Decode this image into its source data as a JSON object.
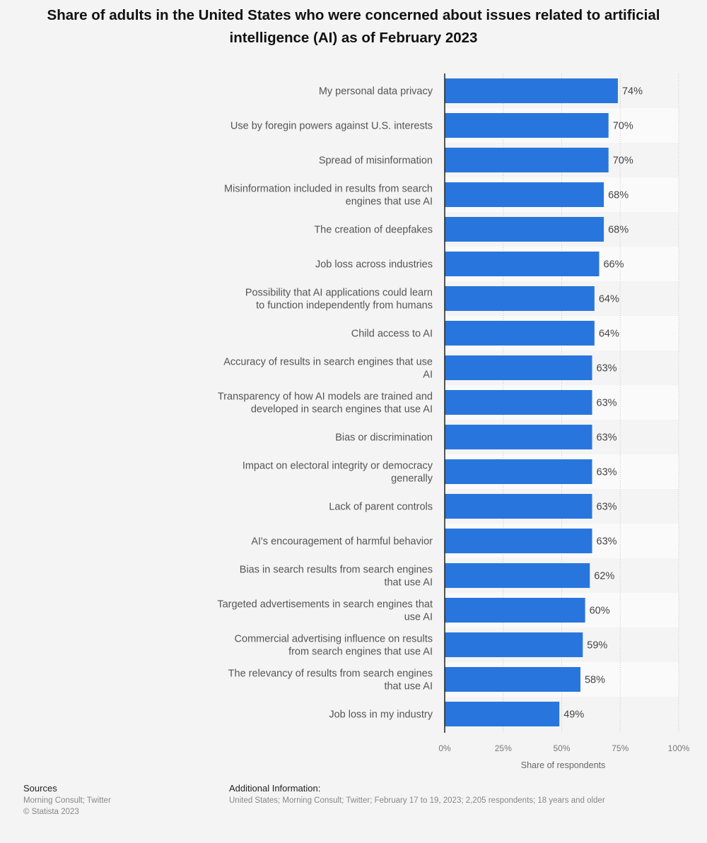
{
  "title": "Share of adults in the United States who were concerned about issues related to artificial intelligence (AI) as of February 2023",
  "chart_data": {
    "type": "bar",
    "orientation": "horizontal",
    "categories": [
      "My personal data privacy",
      "Use by foregin powers against U.S. interests",
      "Spread of misinformation",
      "Misinformation included in results from search engines that use AI",
      "The creation of deepfakes",
      "Job loss across industries",
      "Possibility that AI applications could learn to function independently from humans",
      "Child access to AI",
      "Accuracy of results in search engines that use AI",
      "Transparency of how AI models are trained and developed in search engines that use AI",
      "Bias or discrimination",
      "Impact on electoral integrity or democracy generally",
      "Lack of parent controls",
      "AI's encouragement of harmful behavior",
      "Bias in search results from search engines that use AI",
      "Targeted advertisements in search engines that use AI",
      "Commercial advertising influence on results from search engines that use AI",
      "The relevancy of results from search engines that use AI",
      "Job loss in my industry"
    ],
    "values": [
      74,
      70,
      70,
      68,
      68,
      66,
      64,
      64,
      63,
      63,
      63,
      63,
      63,
      63,
      62,
      60,
      59,
      58,
      49
    ],
    "value_labels": [
      "74%",
      "70%",
      "70%",
      "68%",
      "68%",
      "66%",
      "64%",
      "64%",
      "63%",
      "63%",
      "63%",
      "63%",
      "63%",
      "63%",
      "62%",
      "60%",
      "59%",
      "58%",
      "49%"
    ],
    "xlim": [
      0,
      100
    ],
    "xticks": [
      0,
      25,
      50,
      75,
      100
    ],
    "xtick_labels": [
      "0%",
      "25%",
      "50%",
      "75%",
      "100%"
    ],
    "xlabel": "Share of respondents",
    "bar_color": "#2876dd",
    "grid": true
  },
  "footer": {
    "sources_heading": "Sources",
    "sources_line1": "Morning Consult; Twitter",
    "sources_line2": "© Statista 2023",
    "additional_heading": "Additional Information:",
    "additional_text": "United States; Morning Consult; Twitter; February 17 to 19, 2023; 2,205 respondents; 18 years and older"
  }
}
